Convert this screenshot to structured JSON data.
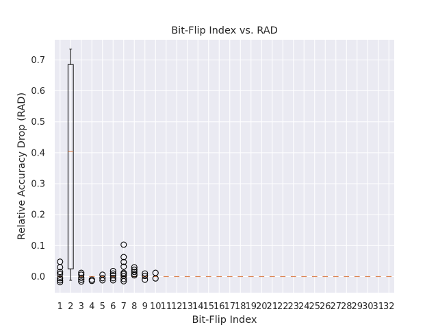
{
  "chart_data": {
    "type": "box",
    "title": "Bit-Flip Index vs. RAD",
    "xlabel": "Bit-Flip Index",
    "ylabel": "Relative Accuracy Drop (RAD)",
    "ylim": [
      -0.052,
      0.765
    ],
    "yticks": [
      0.0,
      0.1,
      0.2,
      0.3,
      0.4,
      0.5,
      0.6,
      0.7
    ],
    "grid": true,
    "categories": [
      "1",
      "2",
      "3",
      "4",
      "5",
      "6",
      "7",
      "8",
      "9",
      "10",
      "11",
      "12",
      "13",
      "14",
      "15",
      "16",
      "17",
      "18",
      "19",
      "20",
      "21",
      "22",
      "23",
      "24",
      "25",
      "26",
      "27",
      "28",
      "29",
      "30",
      "31",
      "32"
    ],
    "boxes": [
      {
        "label": "1",
        "q1": 0.0,
        "median": 0.0,
        "q3": 0.0,
        "whislo": 0.0,
        "whishi": 0.0,
        "fliers": [
          0.048,
          0.03,
          0.015,
          0.008,
          -0.005,
          -0.012,
          -0.018
        ]
      },
      {
        "label": "2",
        "q1": 0.025,
        "median": 0.405,
        "q3": 0.685,
        "whislo": -0.012,
        "whishi": 0.735,
        "fliers": []
      },
      {
        "label": "3",
        "q1": 0.0,
        "median": 0.0,
        "q3": 0.0,
        "whislo": 0.0,
        "whishi": 0.0,
        "fliers": [
          0.012,
          0.006,
          -0.004,
          -0.01,
          -0.016
        ]
      },
      {
        "label": "4",
        "q1": 0.0,
        "median": 0.0,
        "q3": 0.0,
        "whislo": 0.0,
        "whishi": 0.0,
        "fliers": [
          -0.01,
          -0.014
        ]
      },
      {
        "label": "5",
        "q1": 0.0,
        "median": 0.0,
        "q3": 0.0,
        "whislo": 0.0,
        "whishi": 0.0,
        "fliers": [
          0.006,
          -0.005,
          -0.012
        ]
      },
      {
        "label": "6",
        "q1": 0.0,
        "median": 0.0,
        "q3": 0.0,
        "whislo": 0.0,
        "whishi": 0.0,
        "fliers": [
          0.018,
          0.01,
          0.004,
          -0.005,
          -0.012
        ]
      },
      {
        "label": "7",
        "q1": 0.0,
        "median": 0.0,
        "q3": 0.0,
        "whislo": 0.0,
        "whishi": 0.0,
        "fliers": [
          0.103,
          0.063,
          0.047,
          0.032,
          0.012,
          0.008,
          0.002,
          -0.008,
          -0.015
        ]
      },
      {
        "label": "8",
        "q1": 0.0,
        "median": 0.0,
        "q3": 0.0,
        "whislo": 0.0,
        "whishi": 0.0,
        "fliers": [
          0.03,
          0.022,
          0.015,
          0.008,
          0.004
        ]
      },
      {
        "label": "9",
        "q1": 0.0,
        "median": 0.0,
        "q3": 0.0,
        "whislo": 0.0,
        "whishi": 0.0,
        "fliers": [
          0.01,
          0.002,
          -0.01
        ]
      },
      {
        "label": "10",
        "q1": 0.0,
        "median": 0.0,
        "q3": 0.0,
        "whislo": 0.0,
        "whishi": 0.0,
        "fliers": [
          0.012,
          -0.006
        ]
      },
      {
        "label": "11",
        "q1": 0.0,
        "median": 0.0,
        "q3": 0.0,
        "whislo": 0.0,
        "whishi": 0.0,
        "fliers": []
      },
      {
        "label": "12",
        "q1": 0.0,
        "median": 0.0,
        "q3": 0.0,
        "whislo": 0.0,
        "whishi": 0.0,
        "fliers": []
      },
      {
        "label": "13",
        "q1": 0.0,
        "median": 0.0,
        "q3": 0.0,
        "whislo": 0.0,
        "whishi": 0.0,
        "fliers": []
      },
      {
        "label": "14",
        "q1": 0.0,
        "median": 0.0,
        "q3": 0.0,
        "whislo": 0.0,
        "whishi": 0.0,
        "fliers": []
      },
      {
        "label": "15",
        "q1": 0.0,
        "median": 0.0,
        "q3": 0.0,
        "whislo": 0.0,
        "whishi": 0.0,
        "fliers": []
      },
      {
        "label": "16",
        "q1": 0.0,
        "median": 0.0,
        "q3": 0.0,
        "whislo": 0.0,
        "whishi": 0.0,
        "fliers": []
      },
      {
        "label": "17",
        "q1": 0.0,
        "median": 0.0,
        "q3": 0.0,
        "whislo": 0.0,
        "whishi": 0.0,
        "fliers": []
      },
      {
        "label": "18",
        "q1": 0.0,
        "median": 0.0,
        "q3": 0.0,
        "whislo": 0.0,
        "whishi": 0.0,
        "fliers": []
      },
      {
        "label": "19",
        "q1": 0.0,
        "median": 0.0,
        "q3": 0.0,
        "whislo": 0.0,
        "whishi": 0.0,
        "fliers": []
      },
      {
        "label": "20",
        "q1": 0.0,
        "median": 0.0,
        "q3": 0.0,
        "whislo": 0.0,
        "whishi": 0.0,
        "fliers": []
      },
      {
        "label": "21",
        "q1": 0.0,
        "median": 0.0,
        "q3": 0.0,
        "whislo": 0.0,
        "whishi": 0.0,
        "fliers": []
      },
      {
        "label": "22",
        "q1": 0.0,
        "median": 0.0,
        "q3": 0.0,
        "whislo": 0.0,
        "whishi": 0.0,
        "fliers": []
      },
      {
        "label": "23",
        "q1": 0.0,
        "median": 0.0,
        "q3": 0.0,
        "whislo": 0.0,
        "whishi": 0.0,
        "fliers": []
      },
      {
        "label": "24",
        "q1": 0.0,
        "median": 0.0,
        "q3": 0.0,
        "whislo": 0.0,
        "whishi": 0.0,
        "fliers": []
      },
      {
        "label": "25",
        "q1": 0.0,
        "median": 0.0,
        "q3": 0.0,
        "whislo": 0.0,
        "whishi": 0.0,
        "fliers": []
      },
      {
        "label": "26",
        "q1": 0.0,
        "median": 0.0,
        "q3": 0.0,
        "whislo": 0.0,
        "whishi": 0.0,
        "fliers": []
      },
      {
        "label": "27",
        "q1": 0.0,
        "median": 0.0,
        "q3": 0.0,
        "whislo": 0.0,
        "whishi": 0.0,
        "fliers": []
      },
      {
        "label": "28",
        "q1": 0.0,
        "median": 0.0,
        "q3": 0.0,
        "whislo": 0.0,
        "whishi": 0.0,
        "fliers": []
      },
      {
        "label": "29",
        "q1": 0.0,
        "median": 0.0,
        "q3": 0.0,
        "whislo": 0.0,
        "whishi": 0.0,
        "fliers": []
      },
      {
        "label": "30",
        "q1": 0.0,
        "median": 0.0,
        "q3": 0.0,
        "whislo": 0.0,
        "whishi": 0.0,
        "fliers": []
      },
      {
        "label": "31",
        "q1": 0.0,
        "median": 0.0,
        "q3": 0.0,
        "whislo": 0.0,
        "whishi": 0.0,
        "fliers": []
      },
      {
        "label": "32",
        "q1": 0.0,
        "median": 0.0,
        "q3": 0.0,
        "whislo": 0.0,
        "whishi": 0.0,
        "fliers": []
      }
    ],
    "colors": {
      "background": "#eaeaf2",
      "grid": "#ffffff",
      "box": "#000000",
      "median": "#dd8452",
      "text": "#262626"
    }
  }
}
